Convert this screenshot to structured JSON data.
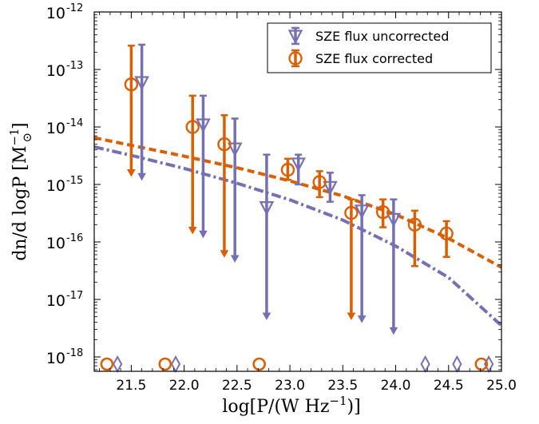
{
  "chart_data": {
    "type": "scatter",
    "xlabel": "log[P/(W Hz$^{-1}$)]",
    "ylabel": "dn/d logP  [M$_\\odot^{-1}$]",
    "xlabel_parts": {
      "main": "log[P/(W Hz",
      "sup": "−1",
      "tail": ")]"
    },
    "ylabel_parts": {
      "main": "dn/d logP  [M",
      "sup": "−1",
      "sub": "⊙",
      "tail": "]"
    },
    "xlim": [
      21.15,
      25.0
    ],
    "ylim_log10": [
      -18.25,
      -12
    ],
    "yscale": "log",
    "grid": false,
    "legend_position": "top-right",
    "x_ticks": [
      21.5,
      22.0,
      22.5,
      23.0,
      23.5,
      24.0,
      24.5,
      25.0
    ],
    "x_tick_labels": [
      "21.5",
      "22.0",
      "22.5",
      "23.0",
      "23.5",
      "24.0",
      "24.5",
      "25.0"
    ],
    "y_ticks": [
      {
        "exp": -12,
        "base": "10",
        "sup": "-12"
      },
      {
        "exp": -13,
        "base": "10",
        "sup": "-13"
      },
      {
        "exp": -14,
        "base": "10",
        "sup": "-14"
      },
      {
        "exp": -15,
        "base": "10",
        "sup": "-15"
      },
      {
        "exp": -16,
        "base": "10",
        "sup": "-16"
      },
      {
        "exp": -17,
        "base": "10",
        "sup": "-17"
      },
      {
        "exp": -18,
        "base": "10",
        "sup": "-18"
      }
    ],
    "series": [
      {
        "name": "SZE flux uncorrected",
        "color": "#7570b3",
        "marker": "triangle-down",
        "points": [
          {
            "x": 21.6,
            "y": 6e-14,
            "ylo": 1.2e-15,
            "yhi": 2.7e-13,
            "lower_arrow": true
          },
          {
            "x": 22.18,
            "y": 1.1e-14,
            "ylo": 1.2e-16,
            "yhi": 3.5e-14,
            "lower_arrow": true
          },
          {
            "x": 22.48,
            "y": 4.2e-15,
            "ylo": 4.5e-17,
            "yhi": 1.4e-14,
            "lower_arrow": true
          },
          {
            "x": 22.78,
            "y": 4e-16,
            "ylo": 4.5e-18,
            "yhi": 3.3e-15,
            "lower_arrow": true
          },
          {
            "x": 23.08,
            "y": 2.3e-15,
            "ylo": 1e-15,
            "yhi": 3.3e-15,
            "lower_arrow": false
          },
          {
            "x": 23.38,
            "y": 9e-16,
            "ylo": 5e-16,
            "yhi": 1.6e-15,
            "lower_arrow": false
          },
          {
            "x": 23.68,
            "y": 3.5e-16,
            "ylo": 4e-18,
            "yhi": 6.5e-16,
            "lower_arrow": true
          },
          {
            "x": 23.98,
            "y": 2.5e-16,
            "ylo": 2.5e-18,
            "yhi": 5.5e-16,
            "lower_arrow": true
          }
        ],
        "upper_limits": [
          {
            "x": 21.37,
            "y": 7.5e-19
          },
          {
            "x": 21.92,
            "y": 7.5e-19
          },
          {
            "x": 24.28,
            "y": 7.5e-19
          },
          {
            "x": 24.58,
            "y": 7.5e-19
          },
          {
            "x": 24.88,
            "y": 7.5e-19
          }
        ],
        "model_curve": {
          "style": "dash-dot",
          "x": [
            21.15,
            21.5,
            22.0,
            22.5,
            23.0,
            23.5,
            24.0,
            24.5,
            25.0
          ],
          "y": [
            4.5e-15,
            3.2e-15,
            1.9e-15,
            1.05e-15,
            5.4e-16,
            2.4e-16,
            8.5e-17,
            2.4e-17,
            3.5e-18
          ]
        }
      },
      {
        "name": "SZE flux corrected",
        "color": "#d95f02",
        "marker": "circle",
        "points": [
          {
            "x": 21.5,
            "y": 5.5e-14,
            "ylo": 1.4e-15,
            "yhi": 2.6e-13,
            "lower_arrow": true
          },
          {
            "x": 22.08,
            "y": 1e-14,
            "ylo": 1.4e-16,
            "yhi": 3.5e-14,
            "lower_arrow": true
          },
          {
            "x": 22.38,
            "y": 5e-15,
            "ylo": 5.5e-17,
            "yhi": 1.6e-14,
            "lower_arrow": true
          },
          {
            "x": 22.98,
            "y": 1.8e-15,
            "ylo": 1.2e-15,
            "yhi": 2.8e-15,
            "lower_arrow": false
          },
          {
            "x": 23.28,
            "y": 1.1e-15,
            "ylo": 6e-16,
            "yhi": 1.7e-15,
            "lower_arrow": false
          },
          {
            "x": 23.58,
            "y": 3.2e-16,
            "ylo": 4.5e-18,
            "yhi": 5.5e-16,
            "lower_arrow": true
          },
          {
            "x": 23.88,
            "y": 3.3e-16,
            "ylo": 1.8e-16,
            "yhi": 5.5e-16,
            "lower_arrow": false
          },
          {
            "x": 24.18,
            "y": 2e-16,
            "ylo": 3.8e-17,
            "yhi": 3.5e-16,
            "lower_arrow": false
          },
          {
            "x": 24.48,
            "y": 1.4e-16,
            "ylo": 5.5e-17,
            "yhi": 2.3e-16,
            "lower_arrow": false
          }
        ],
        "upper_limits": [
          {
            "x": 21.27,
            "y": 7.5e-19
          },
          {
            "x": 21.82,
            "y": 7.5e-19
          },
          {
            "x": 22.71,
            "y": 7.5e-19
          },
          {
            "x": 24.81,
            "y": 7.5e-19
          }
        ],
        "model_curve": {
          "style": "dashed",
          "x": [
            21.15,
            21.5,
            22.0,
            22.5,
            23.0,
            23.5,
            24.0,
            24.5,
            25.0
          ],
          "y": [
            6.5e-15,
            4.8e-15,
            3.1e-15,
            1.95e-15,
            1.15e-15,
            6.3e-16,
            3e-16,
            1.15e-16,
            3.6e-17
          ]
        }
      }
    ]
  }
}
